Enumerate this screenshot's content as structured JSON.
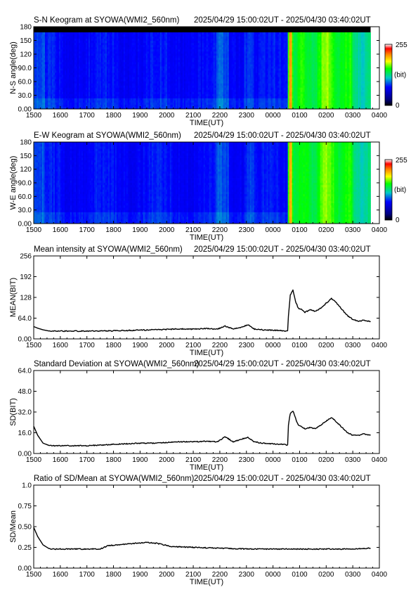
{
  "chart_data": [
    {
      "type": "heatmap",
      "title": "S-N Keogram at SYOWA(WMI2_560nm)",
      "time_range": "2025/04/29 15:00:02UT - 2025/04/30 03:40:02UT",
      "xlabel": "TIME(UT)",
      "ylabel": "N-S angle(deg)",
      "xticks": [
        "1500",
        "1600",
        "1700",
        "1800",
        "1900",
        "2000",
        "2100",
        "2200",
        "2300",
        "0000",
        "0100",
        "0200",
        "0300",
        "0400"
      ],
      "yticks": [
        "0.00",
        "30.0",
        "60.0",
        "90.0",
        "120",
        "150",
        "180"
      ],
      "xlim_hours": [
        0,
        13
      ],
      "ylim": [
        0,
        180
      ],
      "data_end_hours": 12.67,
      "colorbar": {
        "min_label": "0",
        "max_label": "255",
        "unit": "(bit)"
      }
    },
    {
      "type": "heatmap",
      "title": "E-W Keogram at SYOWA(WMI2_560nm)",
      "time_range": "2025/04/29 15:00:02UT - 2025/04/30 03:40:02UT",
      "xlabel": "TIME(UT)",
      "ylabel": "W-E angle(deg)",
      "xticks": [
        "1500",
        "1600",
        "1700",
        "1800",
        "1900",
        "2000",
        "2100",
        "2200",
        "2300",
        "0000",
        "0100",
        "0200",
        "0300",
        "0400"
      ],
      "yticks": [
        "0.00",
        "30.0",
        "60.0",
        "90.0",
        "120",
        "150",
        "180"
      ],
      "xlim_hours": [
        0,
        13
      ],
      "ylim": [
        0,
        180
      ],
      "data_end_hours": 12.67,
      "colorbar": {
        "min_label": "0",
        "max_label": "255",
        "unit": "(bit)"
      }
    },
    {
      "type": "line",
      "title": "Mean intensity at SYOWA(WMI2_560nm)",
      "time_range": "2025/04/29 15:00:02UT - 2025/04/30 03:40:02UT",
      "xlabel": "TIME(UT)",
      "ylabel": "MEAN(BIT)",
      "xticks": [
        "1500",
        "1600",
        "1700",
        "1800",
        "1900",
        "2000",
        "2100",
        "2200",
        "2300",
        "0000",
        "0100",
        "0200",
        "0300",
        "0400"
      ],
      "yticks": [
        "0.00",
        "64.0",
        "128",
        "192",
        "256"
      ],
      "xlim_hours": [
        0,
        13
      ],
      "ylim": [
        0,
        256
      ],
      "series": [
        {
          "x_hours": [
            0,
            0.15,
            0.35,
            0.6,
            1,
            2,
            3,
            3.5,
            4,
            4.5,
            5,
            5.5,
            6,
            6.5,
            6.9,
            7.2,
            7.5,
            7.8,
            8.05,
            8.3,
            8.6,
            9,
            9.4,
            9.55,
            9.58,
            9.65,
            9.75,
            9.85,
            9.95,
            10.05,
            10.2,
            10.4,
            10.6,
            10.8,
            11.0,
            11.2,
            11.4,
            11.6,
            11.8,
            12.0,
            12.2,
            12.4,
            12.67
          ],
          "values": [
            38,
            33,
            28,
            24,
            24,
            24,
            25,
            26,
            27,
            28,
            29,
            31,
            30,
            32,
            30,
            40,
            30,
            35,
            44,
            30,
            28,
            27,
            25,
            24,
            70,
            135,
            150,
            115,
            95,
            92,
            82,
            90,
            85,
            95,
            110,
            125,
            110,
            90,
            72,
            60,
            55,
            57,
            54
          ]
        }
      ]
    },
    {
      "type": "line",
      "title": "Standard Deviation at SYOWA(WMI2_560nm)",
      "time_range": "2025/04/29 15:00:02UT - 2025/04/30 03:40:02UT",
      "xlabel": "TIME(UT)",
      "ylabel": "SD(BIT)",
      "xticks": [
        "1500",
        "1600",
        "1700",
        "1800",
        "1900",
        "2000",
        "2100",
        "2200",
        "2300",
        "0000",
        "0100",
        "0200",
        "0300",
        "0400"
      ],
      "yticks": [
        "0.00",
        "16.0",
        "32.0",
        "48.0",
        "64.0"
      ],
      "xlim_hours": [
        0,
        13
      ],
      "ylim": [
        0,
        64
      ],
      "series": [
        {
          "x_hours": [
            0,
            0.15,
            0.35,
            0.6,
            1,
            2,
            3,
            3.5,
            4,
            4.5,
            5,
            5.5,
            6,
            6.5,
            6.9,
            7.2,
            7.5,
            7.8,
            8.05,
            8.3,
            8.6,
            9,
            9.4,
            9.55,
            9.58,
            9.65,
            9.75,
            9.85,
            9.95,
            10.05,
            10.2,
            10.4,
            10.6,
            10.8,
            11.0,
            11.2,
            11.4,
            11.6,
            11.8,
            12.0,
            12.2,
            12.4,
            12.67
          ],
          "values": [
            21,
            14,
            8,
            6,
            6,
            6,
            7,
            7.5,
            8,
            8,
            8.5,
            9,
            9,
            9.5,
            9,
            13,
            9,
            11,
            12.5,
            9,
            8,
            7.5,
            7,
            6.5,
            22,
            31,
            33,
            27,
            22,
            21,
            19,
            20,
            19,
            22,
            25,
            28,
            24,
            20,
            16,
            14,
            14,
            15,
            14
          ]
        }
      ]
    },
    {
      "type": "line",
      "title": "Ratio of SD/Mean at SYOWA(WMI2_560nm)",
      "time_range": "2025/04/29 15:00:02UT - 2025/04/30 03:40:02UT",
      "xlabel": "TIME(UT)",
      "ylabel": "SD/Mean",
      "xticks": [
        "1500",
        "1600",
        "1700",
        "1800",
        "1900",
        "2000",
        "2100",
        "2200",
        "2300",
        "0000",
        "0100",
        "0200",
        "0300",
        "0400"
      ],
      "yticks": [
        "0.00",
        "0.25",
        "0.50",
        "0.75",
        "1.0"
      ],
      "xlim_hours": [
        0,
        13
      ],
      "ylim": [
        0,
        1.0
      ],
      "series": [
        {
          "x_hours": [
            0,
            0.15,
            0.35,
            0.6,
            1,
            2.5,
            2.8,
            3.5,
            4.2,
            4.6,
            5.2,
            6,
            7,
            8,
            9,
            10,
            11,
            12,
            12.67
          ],
          "values": [
            0.49,
            0.38,
            0.28,
            0.23,
            0.23,
            0.23,
            0.27,
            0.29,
            0.31,
            0.3,
            0.26,
            0.25,
            0.24,
            0.23,
            0.23,
            0.23,
            0.23,
            0.23,
            0.24
          ]
        }
      ]
    }
  ]
}
